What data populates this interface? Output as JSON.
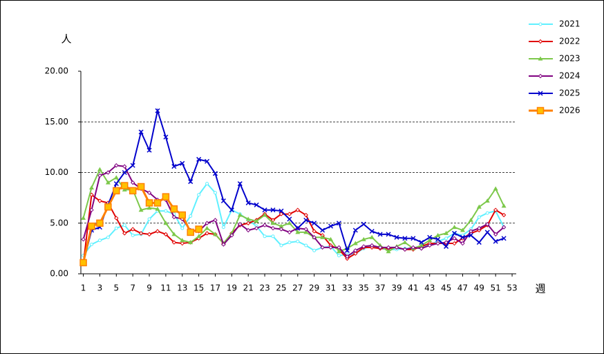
{
  "chart_data": {
    "type": "line",
    "y_label": "人",
    "x_label": "週",
    "x": [
      1,
      2,
      3,
      4,
      5,
      6,
      7,
      8,
      9,
      10,
      11,
      12,
      13,
      14,
      15,
      16,
      17,
      18,
      19,
      20,
      21,
      22,
      23,
      24,
      25,
      26,
      27,
      28,
      29,
      30,
      31,
      32,
      33,
      34,
      35,
      36,
      37,
      38,
      39,
      40,
      41,
      42,
      43,
      44,
      45,
      46,
      47,
      48,
      49,
      50,
      51,
      52
    ],
    "xlim": [
      0.7,
      53.5
    ],
    "xticks": [
      1,
      3,
      5,
      7,
      9,
      11,
      13,
      15,
      17,
      19,
      21,
      23,
      25,
      27,
      29,
      31,
      33,
      35,
      37,
      39,
      41,
      43,
      45,
      47,
      49,
      51,
      53
    ],
    "ylim": [
      0,
      20
    ],
    "yticks": [
      {
        "value": 0,
        "label": "0.00"
      },
      {
        "value": 5,
        "label": "5.00"
      },
      {
        "value": 10,
        "label": "10.00"
      },
      {
        "value": 15,
        "label": "15.00"
      },
      {
        "value": 20,
        "label": "20.00"
      }
    ],
    "grid": true,
    "legend": "right",
    "series": [
      {
        "name": "2021",
        "color": "#5ff0ff",
        "marker": "circle",
        "values": [
          1.8,
          2.9,
          3.3,
          3.6,
          4.5,
          4.8,
          3.8,
          3.9,
          5.4,
          6.2,
          6.2,
          5.9,
          4.5,
          5.7,
          7.8,
          8.9,
          8.0,
          4.6,
          6.3,
          5.9,
          5.3,
          4.7,
          3.7,
          3.7,
          2.8,
          3.1,
          3.2,
          2.8,
          2.3,
          2.6,
          2.7,
          1.8,
          1.9,
          2.0,
          2.5,
          2.7,
          2.5,
          2.4,
          2.4,
          2.5,
          2.5,
          2.6,
          2.9,
          3.2,
          3.5,
          4.0,
          3.8,
          4.4,
          5.6,
          6.0,
          6.2,
          4.6
        ]
      },
      {
        "name": "2022",
        "color": "#e00000",
        "marker": "diamond",
        "values": [
          1.0,
          7.8,
          7.2,
          7.0,
          5.5,
          4.0,
          4.4,
          4.0,
          3.9,
          4.2,
          3.9,
          3.1,
          3.0,
          3.1,
          3.5,
          4.0,
          3.9,
          3.0,
          4.0,
          4.8,
          5.0,
          5.3,
          5.9,
          5.3,
          5.9,
          5.9,
          6.3,
          5.8,
          4.2,
          3.8,
          2.8,
          2.4,
          1.5,
          2.0,
          2.6,
          2.6,
          2.5,
          2.5,
          2.6,
          2.4,
          2.4,
          2.7,
          3.0,
          3.0,
          3.0,
          3.0,
          3.5,
          4.0,
          4.3,
          4.8,
          6.3,
          5.8
        ]
      },
      {
        "name": "2023",
        "color": "#7cc84a",
        "marker": "triangle",
        "values": [
          5.5,
          8.5,
          10.3,
          9.0,
          9.5,
          8.3,
          8.3,
          6.3,
          6.5,
          6.4,
          5.0,
          3.9,
          3.3,
          3.1,
          3.7,
          4.5,
          3.9,
          3.0,
          4.0,
          5.8,
          5.4,
          5.2,
          5.8,
          5.0,
          4.7,
          5.0,
          4.1,
          4.1,
          3.6,
          3.6,
          3.4,
          2.2,
          2.5,
          3.0,
          3.4,
          3.6,
          2.8,
          2.2,
          2.7,
          3.1,
          2.5,
          2.8,
          3.3,
          3.8,
          4.0,
          4.6,
          4.3,
          5.3,
          6.6,
          7.2,
          8.4,
          6.7
        ]
      },
      {
        "name": "2024",
        "color": "#800080",
        "marker": "diamond",
        "values": [
          3.4,
          6.3,
          9.7,
          10.0,
          10.7,
          10.6,
          9.0,
          8.4,
          8.0,
          7.3,
          7.3,
          5.6,
          5.4,
          4.3,
          4.2,
          5.0,
          5.3,
          2.9,
          3.8,
          4.9,
          4.3,
          4.5,
          4.8,
          4.5,
          4.4,
          4.1,
          4.5,
          4.4,
          3.6,
          2.6,
          2.6,
          2.6,
          1.7,
          2.3,
          2.7,
          2.8,
          2.6,
          2.6,
          2.6,
          2.4,
          2.6,
          2.5,
          2.8,
          3.0,
          3.1,
          3.5,
          3.0,
          4.2,
          4.5,
          4.9,
          3.9,
          4.6
        ]
      },
      {
        "name": "2025",
        "color": "#0000cc",
        "marker": "x",
        "values": [
          1.1,
          4.3,
          4.6,
          6.8,
          8.9,
          10.0,
          10.7,
          14.0,
          12.2,
          16.1,
          13.5,
          10.6,
          10.9,
          9.1,
          11.3,
          11.1,
          9.9,
          7.2,
          6.3,
          8.9,
          7.0,
          6.8,
          6.3,
          6.3,
          6.2,
          5.4,
          4.5,
          5.3,
          5.0,
          4.3,
          4.7,
          5.0,
          2.3,
          4.3,
          4.9,
          4.2,
          3.9,
          3.9,
          3.6,
          3.5,
          3.5,
          3.1,
          3.6,
          3.4,
          2.7,
          4.0,
          3.6,
          3.8,
          3.1,
          4.1,
          3.2,
          3.5
        ]
      },
      {
        "name": "2026",
        "color": "#ff8000",
        "marker": "square",
        "marker_color": "#ffc000",
        "values": [
          1.1,
          4.7,
          5.0,
          6.6,
          8.2,
          8.7,
          8.2,
          8.6,
          7.0,
          7.0,
          7.6,
          6.4,
          5.8,
          4.1,
          4.4,
          null,
          null,
          null,
          null,
          null,
          null,
          null,
          null,
          null,
          null,
          null,
          null,
          null,
          null,
          null,
          null,
          null,
          null,
          null,
          null,
          null,
          null,
          null,
          null,
          null,
          null,
          null,
          null,
          null,
          null,
          null,
          null,
          null,
          null,
          null,
          null,
          null
        ]
      }
    ]
  }
}
